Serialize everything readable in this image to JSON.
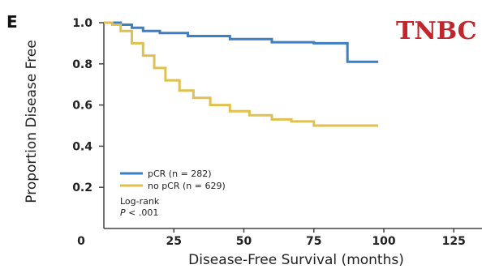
{
  "panel_letter": "E",
  "subtype_label": "TNBC",
  "annotation": {
    "line1": "Log-rank",
    "line2_italic": "P",
    "line2_rest": " < .001"
  },
  "chart_data": {
    "type": "line",
    "title": "",
    "xlabel": "Disease-Free Survival (months)",
    "ylabel": "Proportion Disease Free",
    "xlim": [
      0,
      135
    ],
    "ylim": [
      0,
      1.0
    ],
    "x_ticks": [
      0,
      25,
      50,
      75,
      100,
      125
    ],
    "x_tick_labels": [
      "0",
      "25",
      "50",
      "75",
      "100",
      "125"
    ],
    "y_ticks": [
      0.2,
      0.4,
      0.6,
      0.8,
      1.0
    ],
    "y_tick_labels": [
      "0.2",
      "0.4",
      "0.6",
      "0.8",
      "1.0"
    ],
    "legend_position": "bottom-left",
    "series": [
      {
        "name": "pCR (n = 282)",
        "color": "#3b7fc4",
        "step": true,
        "x": [
          0,
          6,
          10,
          14,
          20,
          30,
          45,
          60,
          75,
          87,
          87,
          98
        ],
        "y": [
          1.0,
          0.99,
          0.975,
          0.96,
          0.95,
          0.935,
          0.92,
          0.905,
          0.9,
          0.9,
          0.81,
          0.81
        ]
      },
      {
        "name": "no pCR (n = 629)",
        "color": "#e0c04f",
        "step": true,
        "x": [
          0,
          3,
          6,
          10,
          14,
          18,
          22,
          27,
          32,
          38,
          45,
          52,
          60,
          67,
          75,
          85,
          98
        ],
        "y": [
          1.0,
          0.99,
          0.96,
          0.9,
          0.84,
          0.78,
          0.72,
          0.67,
          0.635,
          0.6,
          0.57,
          0.55,
          0.53,
          0.52,
          0.5,
          0.5,
          0.5
        ]
      }
    ]
  }
}
